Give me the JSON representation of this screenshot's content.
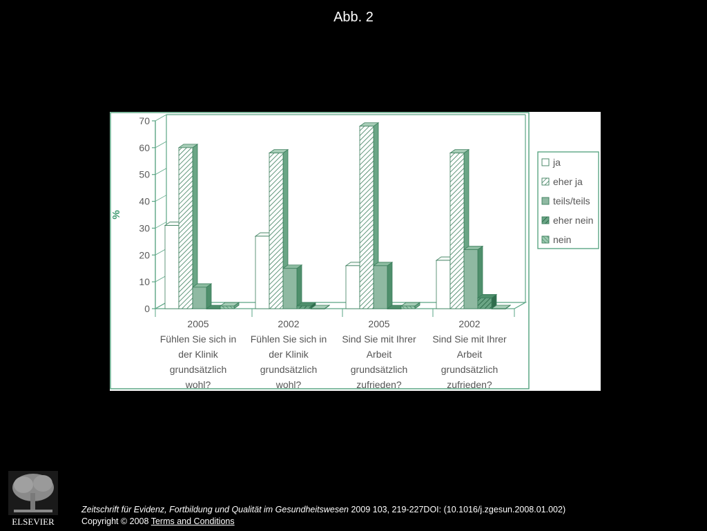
{
  "slide": {
    "title": "Abb. 2"
  },
  "footer": {
    "journal": "Zeitschrift für Evidenz, Fortbildung und Qualität im Gesundheitswesen",
    "citation": " 2009 103, 219-227DOI: (10.1016/j.zgesun.2008.01.002)",
    "copyright": "Copyright © 2008",
    "terms_link": " Terms and Conditions"
  },
  "logo": {
    "text": "ELSEVIER",
    "icon": "elsevier-tree-icon"
  },
  "colors": {
    "accent": "#3e9a70",
    "chart_line": "#5aa584",
    "bar_ja": "#ffffff",
    "bar_teils": "#8fb9a2",
    "bar_stroke": "#3a7d5b"
  },
  "chart_data": {
    "type": "bar",
    "ylabel": "%",
    "ylim": [
      0,
      70
    ],
    "yticks": [
      0,
      10,
      20,
      30,
      40,
      50,
      60,
      70
    ],
    "categories": [
      [
        "2005",
        "Fühlen Sie sich in",
        "der Klinik",
        "grundsätzlich",
        "wohl?"
      ],
      [
        "2002",
        "Fühlen Sie sich in",
        "der Klinik",
        "grundsätzlich",
        "wohl?"
      ],
      [
        "2005",
        "Sind Sie mit Ihrer",
        "Arbeit",
        "grundsätzlich",
        "zufrieden?"
      ],
      [
        "2002",
        "Sind Sie mit Ihrer",
        "Arbeit",
        "grundsätzlich",
        "zufrieden?"
      ]
    ],
    "series": [
      {
        "name": "ja",
        "values": [
          31,
          27,
          16,
          18
        ],
        "pattern": "white"
      },
      {
        "name": "eher ja",
        "values": [
          60,
          58,
          68,
          58
        ],
        "pattern": "hatch"
      },
      {
        "name": "teils/teils",
        "values": [
          8,
          15,
          16,
          22
        ],
        "pattern": "solid"
      },
      {
        "name": "eher nein",
        "values": [
          0,
          1,
          0,
          4
        ],
        "pattern": "darkhatch"
      },
      {
        "name": "nein",
        "values": [
          1,
          0,
          1,
          0
        ],
        "pattern": "lighthatch"
      }
    ],
    "legend_position": "right",
    "three_d": true
  }
}
